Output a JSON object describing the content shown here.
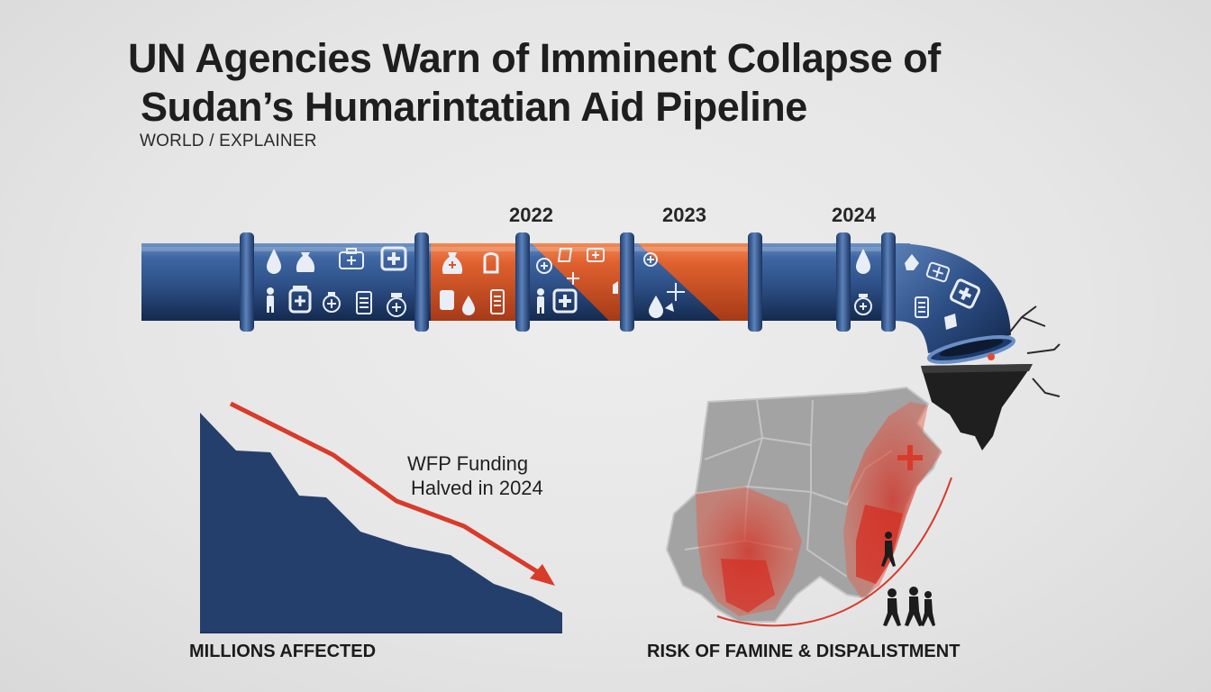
{
  "headline": {
    "line1": "UN Agencies Warn of Imminent Collapse of",
    "line2": "Sudan’s Humarintatian Aid Pipeline"
  },
  "section_label": "WORLD / EXPLAINER",
  "pipeline": {
    "years": [
      "2022",
      "2023",
      "2024"
    ],
    "colors": {
      "pipe_blue": "#2f5590",
      "pipe_orange": "#d9552b",
      "accent_red": "#d93b2b"
    },
    "icons": [
      "drop-icon",
      "sack-icon",
      "first-aid-kit-icon",
      "medical-cross-icon",
      "person-icon",
      "medicine-jar-icon",
      "health-badge-icon",
      "canister-icon",
      "hospital-badge-icon",
      "fuel-can-icon"
    ]
  },
  "trend_chart": {
    "annotation_line1": "WFP Funding",
    "annotation_line2": "Halved in 2024",
    "x_label": "MILLIONS AFFECTED",
    "area_color": "#253f6c",
    "arrow_color": "#d93b2b"
  },
  "map": {
    "label": "RISK OF FAMINE & DISPALISTMENT",
    "land_color": "#a3a3a3",
    "risk_color": "#e04a36",
    "icons": [
      "medical-cross-icon",
      "displaced-people-icon",
      "cracked-ground-icon"
    ]
  }
}
